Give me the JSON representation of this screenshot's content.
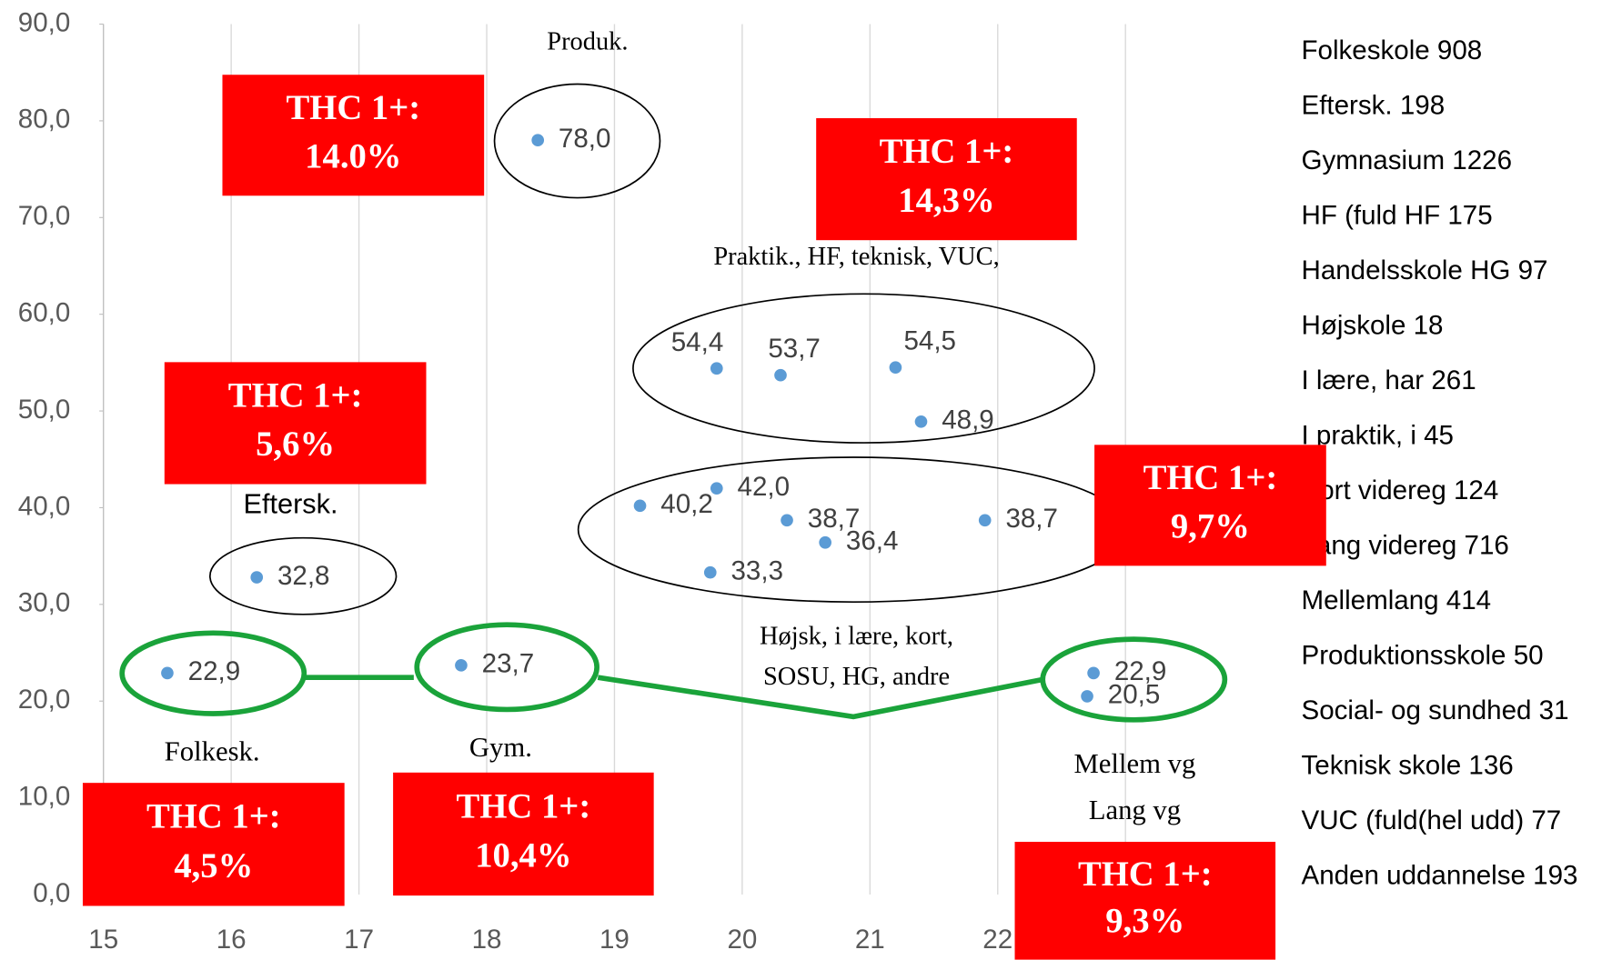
{
  "chart_data": {
    "type": "scatter",
    "xlim": [
      15,
      23
    ],
    "xticks": [
      15,
      16,
      17,
      18,
      19,
      20,
      21,
      22,
      23
    ],
    "ylim": [
      0,
      90
    ],
    "yticks": [
      {
        "value": 0,
        "label": "0,0"
      },
      {
        "value": 10,
        "label": "10,0"
      },
      {
        "value": 20,
        "label": "20,0"
      },
      {
        "value": 30,
        "label": "30,0"
      },
      {
        "value": 40,
        "label": "40,0"
      },
      {
        "value": 50,
        "label": "50,0"
      },
      {
        "value": 60,
        "label": "60,0"
      },
      {
        "value": 70,
        "label": "70,0"
      },
      {
        "value": 80,
        "label": "80,0"
      },
      {
        "value": 90,
        "label": "90,0"
      }
    ],
    "grid": true,
    "series": [
      {
        "color": "#5b9bd5",
        "x": [
          15.5,
          16.2,
          17.8,
          18.4,
          19.2,
          19.8,
          19.8,
          19.75,
          20.3,
          20.35,
          20.65,
          21.2,
          21.4,
          21.9,
          22.75,
          22.7
        ],
        "values": [
          22.9,
          32.8,
          23.7,
          78.0,
          40.2,
          54.4,
          42.0,
          33.3,
          53.7,
          38.7,
          36.4,
          54.5,
          48.9,
          38.7,
          22.9,
          20.5
        ],
        "value_labels": [
          "22,9",
          "32,8",
          "23,7",
          "78,0",
          "40,2",
          "54,4",
          "42,0",
          "33,3",
          "53,7",
          "38,7",
          "36,4",
          "54,5",
          "48,9",
          "38,7",
          "22,9",
          "20,5"
        ]
      }
    ],
    "annotations": [
      "Produk.",
      "Praktik., HF,  teknisk, VUC,",
      "Eftersk.",
      "Højsk, i lære, kort,",
      "SOSU, HG, andre",
      "Folkesk.",
      "Gym.",
      "Mellem vg",
      "Lang vg"
    ],
    "boxes": [
      [
        "THC 1+:",
        "14.0%"
      ],
      [
        "THC 1+:",
        "14,3%"
      ],
      [
        "THC 1+:",
        "5,6%"
      ],
      [
        "THC 1+:",
        "9,7%"
      ],
      [
        "THC 1+:",
        "4,5%"
      ],
      [
        "THC 1+:",
        "10,4%"
      ],
      [
        "THC 1+:",
        "9,3%"
      ]
    ],
    "side_labels": [
      "Folkeskole 908",
      "Eftersk. 198",
      "Gymnasium 1226",
      "HF (fuld HF 175",
      "Handelsskole HG 97",
      "Højskole 18",
      "I lære, har 261",
      "I praktik, i 45",
      "Kort videreg 124",
      "Lang videreg 716",
      "Mellemlang 414",
      "Produktionsskole 50",
      "Social- og sundhed 31",
      "Teknisk skole 136",
      "VUC (fuld(hel udd) 77",
      "Anden uddannelse 193"
    ]
  }
}
